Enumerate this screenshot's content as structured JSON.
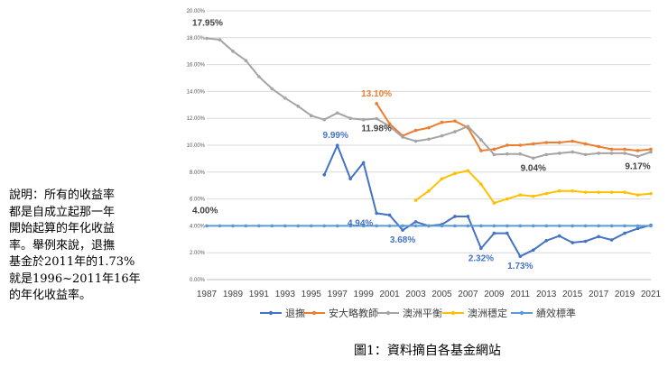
{
  "note": {
    "lines": [
      "說明：所有的收益率",
      "都是自成立起那一年",
      "開始起算的年化收益",
      "率。舉例來說，退撫",
      "基金於2011年的1.73%",
      "就是1996~2011年16年",
      "的年化收益率。"
    ]
  },
  "caption": "圖1：資料摘自各基金網站",
  "chart_data": {
    "type": "line",
    "title": "",
    "xlabel": "",
    "ylabel": "",
    "ylim": [
      0,
      20
    ],
    "y_ticks": [
      "0.00%",
      "2.00%",
      "4.00%",
      "6.00%",
      "8.00%",
      "10.00%",
      "12.00%",
      "14.00%",
      "16.00%",
      "18.00%",
      "20.00%"
    ],
    "x_ticks": [
      "1987",
      "1989",
      "1991",
      "1993",
      "1995",
      "1997",
      "1999",
      "2001",
      "2003",
      "2005",
      "2007",
      "2009",
      "2011",
      "2013",
      "2015",
      "2017",
      "2019",
      "2021"
    ],
    "grid": true,
    "legend_position": "bottom",
    "series": [
      {
        "name": "退撫",
        "color": "#4472c4",
        "points": [
          [
            1996,
            7.8
          ],
          [
            1997,
            9.99
          ],
          [
            1998,
            7.5
          ],
          [
            1999,
            8.7
          ],
          [
            2000,
            4.94
          ],
          [
            2001,
            4.8
          ],
          [
            2002,
            3.68
          ],
          [
            2003,
            4.3
          ],
          [
            2004,
            4.0
          ],
          [
            2005,
            4.1
          ],
          [
            2006,
            4.7
          ],
          [
            2007,
            4.7
          ],
          [
            2008,
            2.32
          ],
          [
            2009,
            3.45
          ],
          [
            2010,
            3.45
          ],
          [
            2011,
            1.73
          ],
          [
            2012,
            2.2
          ],
          [
            2013,
            2.9
          ],
          [
            2014,
            3.25
          ],
          [
            2015,
            2.75
          ],
          [
            2016,
            2.85
          ],
          [
            2017,
            3.2
          ],
          [
            2018,
            2.95
          ],
          [
            2019,
            3.45
          ],
          [
            2020,
            3.8
          ],
          [
            2021,
            4.05
          ]
        ]
      },
      {
        "name": "安大略教師",
        "color": "#ed7d31",
        "points": [
          [
            2000,
            13.1
          ],
          [
            2001,
            11.6
          ],
          [
            2002,
            10.7
          ],
          [
            2003,
            11.1
          ],
          [
            2004,
            11.3
          ],
          [
            2005,
            11.7
          ],
          [
            2006,
            11.8
          ],
          [
            2007,
            11.3
          ],
          [
            2008,
            9.6
          ],
          [
            2009,
            9.7
          ],
          [
            2010,
            10.0
          ],
          [
            2011,
            10.0
          ],
          [
            2012,
            10.1
          ],
          [
            2013,
            10.2
          ],
          [
            2014,
            10.2
          ],
          [
            2015,
            10.3
          ],
          [
            2016,
            10.1
          ],
          [
            2017,
            9.9
          ],
          [
            2018,
            9.7
          ],
          [
            2019,
            9.7
          ],
          [
            2020,
            9.6
          ],
          [
            2021,
            9.7
          ]
        ]
      },
      {
        "name": "澳洲平衡",
        "color": "#a5a5a5",
        "points": [
          [
            1987,
            17.95
          ],
          [
            1988,
            17.85
          ],
          [
            1989,
            17.0
          ],
          [
            1990,
            16.3
          ],
          [
            1991,
            15.1
          ],
          [
            1992,
            14.2
          ],
          [
            1993,
            13.5
          ],
          [
            1994,
            12.9
          ],
          [
            1995,
            12.2
          ],
          [
            1996,
            11.9
          ],
          [
            1997,
            12.4
          ],
          [
            1998,
            12.0
          ],
          [
            1999,
            11.9
          ],
          [
            2000,
            11.98
          ],
          [
            2001,
            11.4
          ],
          [
            2002,
            10.6
          ],
          [
            2003,
            10.3
          ],
          [
            2004,
            10.45
          ],
          [
            2005,
            10.7
          ],
          [
            2006,
            11.0
          ],
          [
            2007,
            11.4
          ],
          [
            2008,
            10.4
          ],
          [
            2009,
            9.3
          ],
          [
            2010,
            9.35
          ],
          [
            2011,
            9.35
          ],
          [
            2012,
            9.04
          ],
          [
            2013,
            9.3
          ],
          [
            2014,
            9.4
          ],
          [
            2015,
            9.5
          ],
          [
            2016,
            9.3
          ],
          [
            2017,
            9.4
          ],
          [
            2018,
            9.4
          ],
          [
            2019,
            9.4
          ],
          [
            2020,
            9.17
          ],
          [
            2021,
            9.5
          ]
        ]
      },
      {
        "name": "澳洲穩定",
        "color": "#ffc000",
        "points": [
          [
            2003,
            5.9
          ],
          [
            2004,
            6.6
          ],
          [
            2005,
            7.5
          ],
          [
            2006,
            7.9
          ],
          [
            2007,
            8.1
          ],
          [
            2008,
            7.1
          ],
          [
            2009,
            5.7
          ],
          [
            2010,
            6.0
          ],
          [
            2011,
            6.3
          ],
          [
            2012,
            6.2
          ],
          [
            2013,
            6.4
          ],
          [
            2014,
            6.6
          ],
          [
            2015,
            6.6
          ],
          [
            2016,
            6.5
          ],
          [
            2017,
            6.5
          ],
          [
            2018,
            6.5
          ],
          [
            2019,
            6.5
          ],
          [
            2020,
            6.3
          ],
          [
            2021,
            6.4
          ]
        ]
      },
      {
        "name": "績效標準",
        "color": "#5b9bd5",
        "points": [
          [
            1987,
            4.0
          ],
          [
            1988,
            4.0
          ],
          [
            1989,
            4.0
          ],
          [
            1990,
            4.0
          ],
          [
            1991,
            4.0
          ],
          [
            1992,
            4.0
          ],
          [
            1993,
            4.0
          ],
          [
            1994,
            4.0
          ],
          [
            1995,
            4.0
          ],
          [
            1996,
            4.0
          ],
          [
            1997,
            4.0
          ],
          [
            1998,
            4.0
          ],
          [
            1999,
            4.0
          ],
          [
            2000,
            4.0
          ],
          [
            2001,
            4.0
          ],
          [
            2002,
            4.0
          ],
          [
            2003,
            4.0
          ],
          [
            2004,
            4.0
          ],
          [
            2005,
            4.0
          ],
          [
            2006,
            4.0
          ],
          [
            2007,
            4.0
          ],
          [
            2008,
            4.0
          ],
          [
            2009,
            4.0
          ],
          [
            2010,
            4.0
          ],
          [
            2011,
            4.0
          ],
          [
            2012,
            4.0
          ],
          [
            2013,
            4.0
          ],
          [
            2014,
            4.0
          ],
          [
            2015,
            4.0
          ],
          [
            2016,
            4.0
          ],
          [
            2017,
            4.0
          ],
          [
            2018,
            4.0
          ],
          [
            2019,
            4.0
          ],
          [
            2020,
            4.0
          ],
          [
            2021,
            4.0
          ]
        ]
      }
    ],
    "annotations": [
      {
        "text": "17.95%",
        "x": 1987,
        "y": 17.95,
        "color": "#404040",
        "pos": "above-right"
      },
      {
        "text": "13.10%",
        "x": 2000,
        "y": 13.1,
        "color": "#ed7d31",
        "pos": "above"
      },
      {
        "text": "11.98%",
        "x": 2000,
        "y": 11.98,
        "color": "#404040",
        "pos": "below"
      },
      {
        "text": "9.99%",
        "x": 1997,
        "y": 9.99,
        "color": "#4472c4",
        "pos": "above-left"
      },
      {
        "text": "9.04%",
        "x": 2012,
        "y": 9.04,
        "color": "#404040",
        "pos": "below"
      },
      {
        "text": "9.17%",
        "x": 2020,
        "y": 9.17,
        "color": "#404040",
        "pos": "below"
      },
      {
        "text": "4.00%",
        "x": 1987,
        "y": 4.0,
        "color": "#404040",
        "pos": "above-right"
      },
      {
        "text": "4.94%",
        "x": 2000,
        "y": 4.94,
        "color": "#4472c4",
        "pos": "below-left"
      },
      {
        "text": "3.68%",
        "x": 2002,
        "y": 3.68,
        "color": "#4472c4",
        "pos": "below"
      },
      {
        "text": "2.32%",
        "x": 2008,
        "y": 2.32,
        "color": "#4472c4",
        "pos": "below"
      },
      {
        "text": "1.73%",
        "x": 2011,
        "y": 1.73,
        "color": "#4472c4",
        "pos": "below"
      }
    ]
  }
}
